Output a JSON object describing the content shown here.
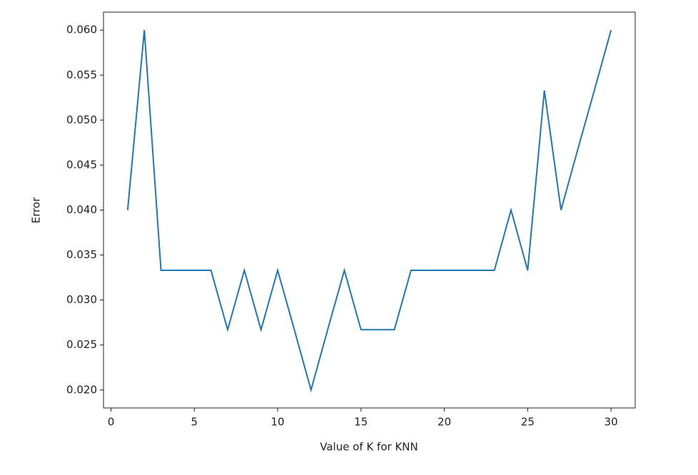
{
  "chart_data": {
    "type": "line",
    "xlabel": "Value of K for KNN",
    "ylabel": "Error",
    "x": [
      1,
      2,
      3,
      4,
      5,
      6,
      7,
      8,
      9,
      10,
      11,
      12,
      13,
      14,
      15,
      16,
      17,
      18,
      19,
      20,
      21,
      22,
      23,
      24,
      25,
      26,
      27,
      28,
      29,
      30
    ],
    "series": [
      {
        "color": "#1f77b4",
        "values": [
          0.04,
          0.06,
          0.0333,
          0.0333,
          0.0333,
          0.0333,
          0.0267,
          0.0333,
          0.0267,
          0.0333,
          0.0267,
          0.02,
          0.0267,
          0.0333,
          0.0267,
          0.0267,
          0.0267,
          0.0333,
          0.0333,
          0.0333,
          0.0333,
          0.0333,
          0.0333,
          0.04,
          0.0333,
          0.0533,
          0.04,
          0.0467,
          0.0533,
          0.06
        ]
      }
    ],
    "xlim": [
      -0.45,
      31.45
    ],
    "xticks": [
      0,
      5,
      10,
      15,
      20,
      25,
      30
    ],
    "ylim": [
      0.018,
      0.062
    ],
    "yticks": [
      {
        "value": 0.02,
        "label": "0.020"
      },
      {
        "value": 0.025,
        "label": "0.025"
      },
      {
        "value": 0.03,
        "label": "0.030"
      },
      {
        "value": 0.035,
        "label": "0.035"
      },
      {
        "value": 0.04,
        "label": "0.040"
      },
      {
        "value": 0.045,
        "label": "0.045"
      },
      {
        "value": 0.05,
        "label": "0.050"
      },
      {
        "value": 0.055,
        "label": "0.055"
      },
      {
        "value": 0.06,
        "label": "0.060"
      }
    ],
    "grid": false
  }
}
